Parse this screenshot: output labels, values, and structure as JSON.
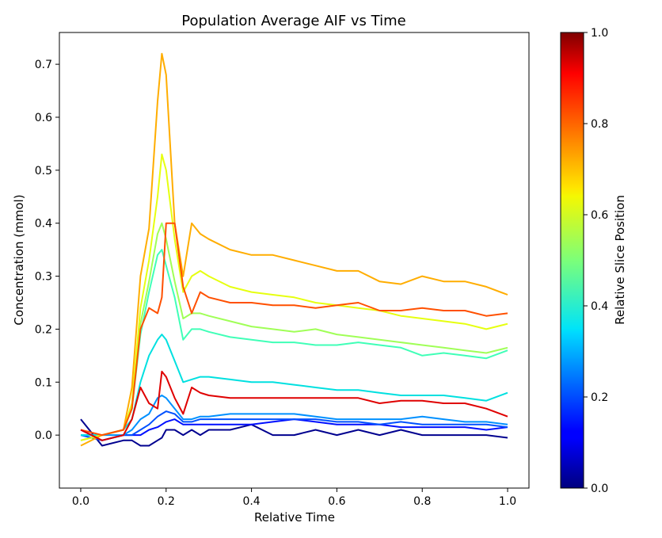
{
  "chart_data": {
    "type": "line",
    "title": "Population Average AIF vs Time",
    "xlabel": "Relative Time",
    "ylabel": "Concentration (mmol)",
    "xlim": [
      -0.05,
      1.05
    ],
    "ylim": [
      -0.1,
      0.76
    ],
    "xticks": [
      0.0,
      0.2,
      0.4,
      0.6,
      0.8,
      1.0
    ],
    "xtick_labels": [
      "0.0",
      "0.2",
      "0.4",
      "0.6",
      "0.8",
      "1.0"
    ],
    "yticks": [
      0.0,
      0.1,
      0.2,
      0.3,
      0.4,
      0.5,
      0.6,
      0.7
    ],
    "ytick_labels": [
      "0.0",
      "0.1",
      "0.2",
      "0.3",
      "0.4",
      "0.5",
      "0.6",
      "0.7"
    ],
    "colorbar": {
      "label": "Relative Slice Position",
      "colormap": "jet",
      "range": [
        0.0,
        1.0
      ],
      "ticks": [
        0.0,
        0.2,
        0.4,
        0.6,
        0.8,
        1.0
      ],
      "tick_labels": [
        "0.0",
        "0.2",
        "0.4",
        "0.6",
        "0.8",
        "1.0"
      ]
    },
    "x": [
      0.0,
      0.05,
      0.1,
      0.12,
      0.14,
      0.16,
      0.18,
      0.19,
      0.2,
      0.22,
      0.24,
      0.26,
      0.28,
      0.3,
      0.35,
      0.4,
      0.45,
      0.5,
      0.55,
      0.6,
      0.65,
      0.7,
      0.75,
      0.8,
      0.85,
      0.9,
      0.95,
      1.0
    ],
    "series": [
      {
        "name": "slice 0.0",
        "color": "#00008f",
        "values": [
          0.03,
          -0.02,
          -0.01,
          -0.01,
          -0.02,
          -0.02,
          -0.01,
          -0.005,
          0.01,
          0.01,
          0.0,
          0.01,
          0.0,
          0.01,
          0.01,
          0.02,
          0.0,
          0.0,
          0.01,
          0.0,
          0.01,
          0.0,
          0.01,
          0.0,
          0.0,
          0.0,
          0.0,
          -0.005
        ]
      },
      {
        "name": "slice 0.05",
        "color": "#000fff",
        "values": [
          0.01,
          -0.01,
          0.0,
          0.0,
          0.0,
          0.01,
          0.015,
          0.02,
          0.025,
          0.03,
          0.02,
          0.02,
          0.02,
          0.02,
          0.02,
          0.02,
          0.025,
          0.03,
          0.025,
          0.02,
          0.02,
          0.02,
          0.015,
          0.015,
          0.015,
          0.015,
          0.01,
          0.015
        ]
      },
      {
        "name": "slice 0.15",
        "color": "#0050ff",
        "values": [
          0.0,
          -0.01,
          0.0,
          0.0,
          0.01,
          0.02,
          0.035,
          0.04,
          0.045,
          0.04,
          0.025,
          0.025,
          0.03,
          0.03,
          0.03,
          0.03,
          0.03,
          0.03,
          0.03,
          0.025,
          0.025,
          0.02,
          0.025,
          0.02,
          0.02,
          0.02,
          0.02,
          0.015
        ]
      },
      {
        "name": "slice 0.3",
        "color": "#0090ff",
        "values": [
          0.0,
          0.0,
          0.0,
          0.01,
          0.03,
          0.04,
          0.07,
          0.075,
          0.07,
          0.05,
          0.03,
          0.03,
          0.035,
          0.035,
          0.04,
          0.04,
          0.04,
          0.04,
          0.035,
          0.03,
          0.03,
          0.03,
          0.03,
          0.035,
          0.03,
          0.025,
          0.025,
          0.02
        ]
      },
      {
        "name": "slice 0.4",
        "color": "#00e0e0",
        "values": [
          0.0,
          0.0,
          0.01,
          0.03,
          0.1,
          0.15,
          0.18,
          0.19,
          0.18,
          0.14,
          0.1,
          0.105,
          0.11,
          0.11,
          0.105,
          0.1,
          0.1,
          0.095,
          0.09,
          0.085,
          0.085,
          0.08,
          0.075,
          0.075,
          0.075,
          0.07,
          0.065,
          0.08
        ]
      },
      {
        "name": "slice 0.55",
        "color": "#40ffb7",
        "values": [
          -0.01,
          0.0,
          0.01,
          0.05,
          0.19,
          0.27,
          0.34,
          0.35,
          0.32,
          0.26,
          0.18,
          0.2,
          0.2,
          0.195,
          0.185,
          0.18,
          0.175,
          0.175,
          0.17,
          0.17,
          0.175,
          0.17,
          0.165,
          0.15,
          0.155,
          0.15,
          0.145,
          0.16
        ]
      },
      {
        "name": "slice 0.65",
        "color": "#a0ff57",
        "values": [
          -0.01,
          0.0,
          0.01,
          0.05,
          0.21,
          0.29,
          0.38,
          0.4,
          0.37,
          0.29,
          0.22,
          0.23,
          0.23,
          0.225,
          0.215,
          0.205,
          0.2,
          0.195,
          0.2,
          0.19,
          0.185,
          0.18,
          0.175,
          0.17,
          0.165,
          0.16,
          0.155,
          0.165
        ]
      },
      {
        "name": "slice 0.72",
        "color": "#e6ff10",
        "values": [
          -0.01,
          0.0,
          0.01,
          0.06,
          0.24,
          0.33,
          0.45,
          0.53,
          0.5,
          0.37,
          0.27,
          0.3,
          0.31,
          0.3,
          0.28,
          0.27,
          0.265,
          0.26,
          0.25,
          0.245,
          0.24,
          0.235,
          0.225,
          0.22,
          0.215,
          0.21,
          0.2,
          0.21
        ]
      },
      {
        "name": "slice 0.82",
        "color": "#ffad00",
        "values": [
          -0.02,
          0.0,
          0.01,
          0.09,
          0.3,
          0.39,
          0.63,
          0.72,
          0.68,
          0.4,
          0.3,
          0.4,
          0.38,
          0.37,
          0.35,
          0.34,
          0.34,
          0.33,
          0.32,
          0.31,
          0.31,
          0.29,
          0.285,
          0.3,
          0.29,
          0.29,
          0.28,
          0.265
        ]
      },
      {
        "name": "slice 0.9",
        "color": "#ff5000",
        "values": [
          0.01,
          0.0,
          0.01,
          0.05,
          0.2,
          0.24,
          0.23,
          0.26,
          0.4,
          0.4,
          0.28,
          0.23,
          0.27,
          0.26,
          0.25,
          0.25,
          0.245,
          0.245,
          0.24,
          0.245,
          0.25,
          0.235,
          0.235,
          0.24,
          0.235,
          0.235,
          0.225,
          0.23
        ]
      },
      {
        "name": "slice 1.0",
        "color": "#df0000",
        "values": [
          0.01,
          -0.01,
          0.0,
          0.03,
          0.09,
          0.06,
          0.05,
          0.12,
          0.11,
          0.07,
          0.04,
          0.09,
          0.08,
          0.075,
          0.07,
          0.07,
          0.07,
          0.07,
          0.07,
          0.07,
          0.07,
          0.06,
          0.065,
          0.065,
          0.06,
          0.06,
          0.05,
          0.035
        ]
      }
    ]
  }
}
